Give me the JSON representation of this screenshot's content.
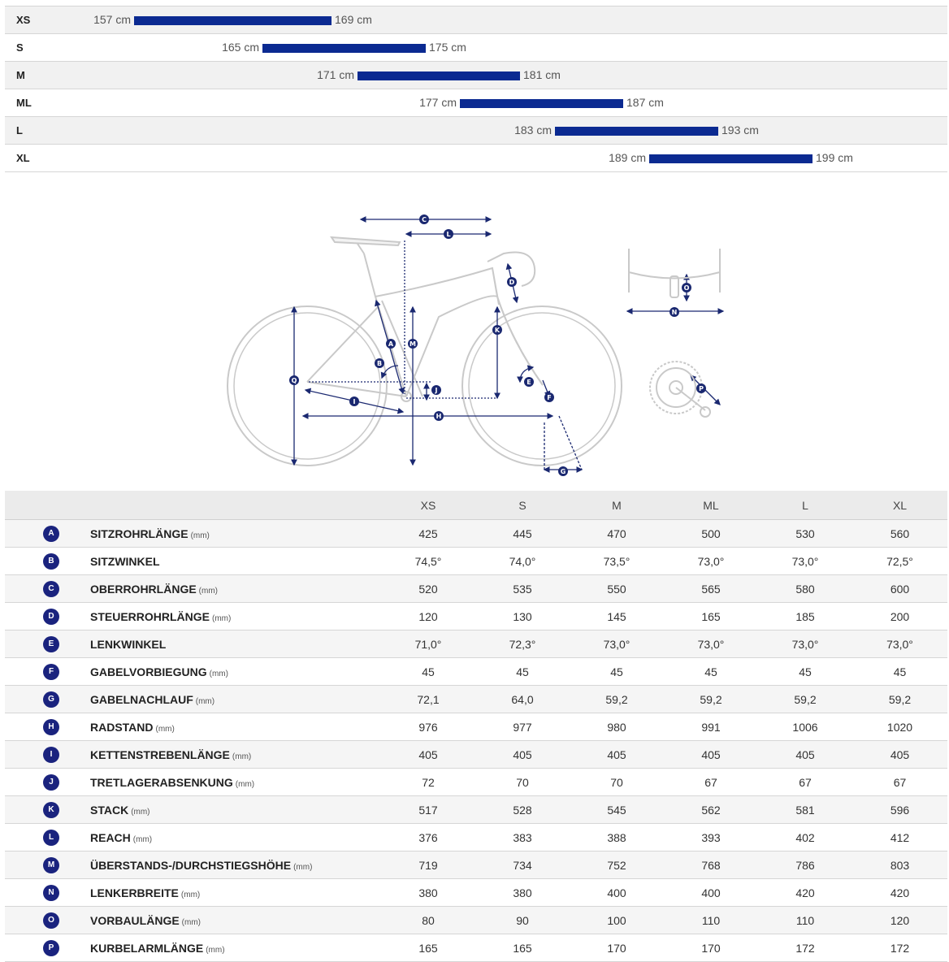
{
  "size_chart": {
    "rows": [
      {
        "size": "XS",
        "min": "157 cm",
        "max": "169 cm"
      },
      {
        "size": "S",
        "min": "165 cm",
        "max": "175 cm"
      },
      {
        "size": "M",
        "min": "171 cm",
        "max": "181 cm"
      },
      {
        "size": "ML",
        "min": "177 cm",
        "max": "187 cm"
      },
      {
        "size": "L",
        "min": "183 cm",
        "max": "193 cm"
      },
      {
        "size": "XL",
        "min": "189 cm",
        "max": "199 cm"
      }
    ],
    "bar_color": "#0b2a91"
  },
  "diagram": {
    "labels": [
      "A",
      "B",
      "C",
      "D",
      "E",
      "F",
      "G",
      "H",
      "I",
      "J",
      "K",
      "L",
      "M",
      "N",
      "O",
      "P",
      "Q"
    ]
  },
  "table": {
    "columns": [
      "XS",
      "S",
      "M",
      "ML",
      "L",
      "XL"
    ],
    "rows": [
      {
        "key": "A",
        "name": "SITZROHRLÄNGE",
        "unit": "(mm)",
        "values": [
          "425",
          "445",
          "470",
          "500",
          "530",
          "560"
        ]
      },
      {
        "key": "B",
        "name": "SITZWINKEL",
        "unit": "",
        "values": [
          "74,5°",
          "74,0°",
          "73,5°",
          "73,0°",
          "73,0°",
          "72,5°"
        ]
      },
      {
        "key": "C",
        "name": "OBERROHRLÄNGE",
        "unit": "(mm)",
        "values": [
          "520",
          "535",
          "550",
          "565",
          "580",
          "600"
        ]
      },
      {
        "key": "D",
        "name": "STEUERROHRLÄNGE",
        "unit": "(mm)",
        "values": [
          "120",
          "130",
          "145",
          "165",
          "185",
          "200"
        ]
      },
      {
        "key": "E",
        "name": "LENKWINKEL",
        "unit": "",
        "values": [
          "71,0°",
          "72,3°",
          "73,0°",
          "73,0°",
          "73,0°",
          "73,0°"
        ]
      },
      {
        "key": "F",
        "name": "GABELVORBIEGUNG",
        "unit": "(mm)",
        "values": [
          "45",
          "45",
          "45",
          "45",
          "45",
          "45"
        ]
      },
      {
        "key": "G",
        "name": "GABELNACHLAUF",
        "unit": "(mm)",
        "values": [
          "72,1",
          "64,0",
          "59,2",
          "59,2",
          "59,2",
          "59,2"
        ]
      },
      {
        "key": "H",
        "name": "RADSTAND",
        "unit": "(mm)",
        "values": [
          "976",
          "977",
          "980",
          "991",
          "1006",
          "1020"
        ]
      },
      {
        "key": "I",
        "name": "KETTENSTREBENLÄNGE",
        "unit": "(mm)",
        "values": [
          "405",
          "405",
          "405",
          "405",
          "405",
          "405"
        ]
      },
      {
        "key": "J",
        "name": "TRETLAGERABSENKUNG",
        "unit": "(mm)",
        "values": [
          "72",
          "70",
          "70",
          "67",
          "67",
          "67"
        ]
      },
      {
        "key": "K",
        "name": "STACK",
        "unit": "(mm)",
        "values": [
          "517",
          "528",
          "545",
          "562",
          "581",
          "596"
        ]
      },
      {
        "key": "L",
        "name": "REACH",
        "unit": "(mm)",
        "values": [
          "376",
          "383",
          "388",
          "393",
          "402",
          "412"
        ]
      },
      {
        "key": "M",
        "name": "ÜBERSTANDS-/DURCHSTIEGSHÖHE",
        "unit": "(mm)",
        "values": [
          "719",
          "734",
          "752",
          "768",
          "786",
          "803"
        ]
      },
      {
        "key": "N",
        "name": "LENKERBREITE",
        "unit": "(mm)",
        "values": [
          "380",
          "380",
          "400",
          "400",
          "420",
          "420"
        ]
      },
      {
        "key": "O",
        "name": "VORBAULÄNGE",
        "unit": "(mm)",
        "values": [
          "80",
          "90",
          "100",
          "110",
          "110",
          "120"
        ]
      },
      {
        "key": "P",
        "name": "KURBELARMLÄNGE",
        "unit": "(mm)",
        "values": [
          "165",
          "165",
          "170",
          "170",
          "172",
          "172"
        ]
      }
    ]
  }
}
